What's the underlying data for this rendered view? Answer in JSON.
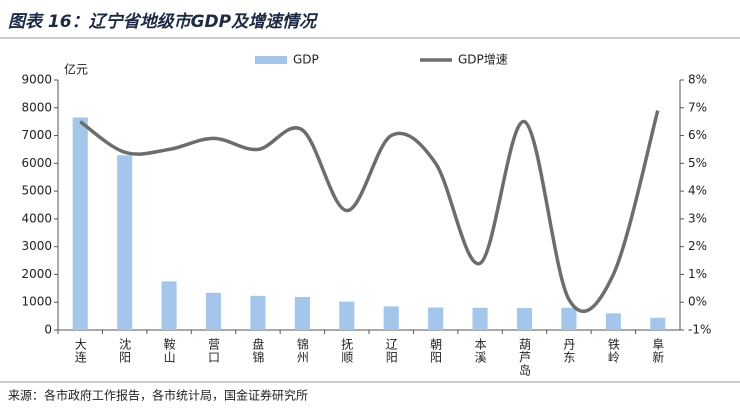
{
  "chart_data": {
    "type": "bar_line",
    "title": "图表 16：辽宁省地级市GDP及增速情况",
    "y_unit": "亿元",
    "source": "来源：各市政府工作报告，各市统计局，国金证券研究所",
    "categories": [
      "大连",
      "沈阳",
      "鞍山",
      "营口",
      "盘锦",
      "锦州",
      "抚顺",
      "辽阳",
      "朝阳",
      "本溪",
      "葫芦岛",
      "丹东",
      "铁岭",
      "阜新"
    ],
    "series": [
      {
        "name": "GDP",
        "type": "bar",
        "color": "#a3c6ea",
        "values": [
          7650,
          6290,
          1750,
          1340,
          1230,
          1190,
          1020,
          850,
          810,
          800,
          790,
          800,
          600,
          440
        ]
      },
      {
        "name": "GDP增速",
        "type": "line",
        "axis": "y2",
        "color": "#6d6d6d",
        "values": [
          6.5,
          5.4,
          5.5,
          5.9,
          5.5,
          6.2,
          3.3,
          6.0,
          5.0,
          1.4,
          6.5,
          0.1,
          1.0,
          6.9
        ]
      }
    ],
    "ylim": [
      0,
      9000
    ],
    "yticks": [
      0,
      1000,
      2000,
      3000,
      4000,
      5000,
      6000,
      7000,
      8000,
      9000
    ],
    "y2lim": [
      -1,
      8
    ],
    "y2ticks": [
      {
        "value": -1,
        "label": "-1%"
      },
      {
        "value": 0,
        "label": "0%"
      },
      {
        "value": 1,
        "label": "1%"
      },
      {
        "value": 2,
        "label": "2%"
      },
      {
        "value": 3,
        "label": "3%"
      },
      {
        "value": 4,
        "label": "4%"
      },
      {
        "value": 5,
        "label": "5%"
      },
      {
        "value": 6,
        "label": "6%"
      },
      {
        "value": 7,
        "label": "7%"
      },
      {
        "value": 8,
        "label": "8%"
      }
    ],
    "grid": false
  }
}
